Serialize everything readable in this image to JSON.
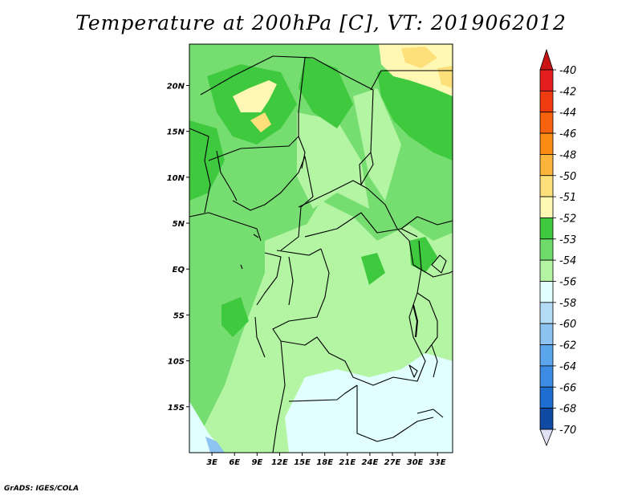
{
  "title": "Temperature at 200hPa [C], VT: 2019062012",
  "credit": "GrADS: IGES/COLA",
  "map": {
    "lat_ticks": [
      {
        "lat": 20,
        "label": "20N"
      },
      {
        "lat": 15,
        "label": "15N"
      },
      {
        "lat": 10,
        "label": "10N"
      },
      {
        "lat": 5,
        "label": "5N"
      },
      {
        "lat": 0,
        "label": "EQ"
      },
      {
        "lat": -5,
        "label": "5S"
      },
      {
        "lat": -10,
        "label": "10S"
      },
      {
        "lat": -15,
        "label": "15S"
      }
    ],
    "lon_ticks": [
      {
        "lon": 3,
        "label": "3E"
      },
      {
        "lon": 6,
        "label": "6E"
      },
      {
        "lon": 9,
        "label": "9E"
      },
      {
        "lon": 12,
        "label": "12E"
      },
      {
        "lon": 15,
        "label": "15E"
      },
      {
        "lon": 18,
        "label": "18E"
      },
      {
        "lon": 21,
        "label": "21E"
      },
      {
        "lon": 24,
        "label": "24E"
      },
      {
        "lon": 27,
        "label": "27E"
      },
      {
        "lon": 30,
        "label": "30E"
      },
      {
        "lon": 33,
        "label": "33E"
      }
    ],
    "lon_range": [
      0,
      35
    ],
    "lat_range": [
      -20,
      24.5
    ]
  },
  "colorbar": {
    "unit": "C",
    "levels": [
      {
        "label": "-40",
        "color": "#e41e1e"
      },
      {
        "label": "-42",
        "color": "#f03a0f"
      },
      {
        "label": "-44",
        "color": "#f7620e"
      },
      {
        "label": "-46",
        "color": "#fa8c14"
      },
      {
        "label": "-48",
        "color": "#fbb43c"
      },
      {
        "label": "-50",
        "color": "#fde07a"
      },
      {
        "label": "-51",
        "color": "#fff7b4"
      },
      {
        "label": "-52",
        "color": "#3fc93f"
      },
      {
        "label": "-53",
        "color": "#6fdb6a"
      },
      {
        "label": "-54",
        "color": "#b4f5a4"
      },
      {
        "label": "-56",
        "color": "#e1ffff"
      },
      {
        "label": "-58",
        "color": "#b4dcf7"
      },
      {
        "label": "-60",
        "color": "#8cc3f0"
      },
      {
        "label": "-62",
        "color": "#5aa5eb"
      },
      {
        "label": "-64",
        "color": "#3c8ce6"
      },
      {
        "label": "-66",
        "color": "#1e6ed2"
      },
      {
        "label": "-68",
        "color": "#0f4ba5"
      },
      {
        "label": "-70",
        "color": "#0a2d78"
      }
    ],
    "top_color": "#c81414",
    "bottom_color": "#e1e1f5"
  }
}
